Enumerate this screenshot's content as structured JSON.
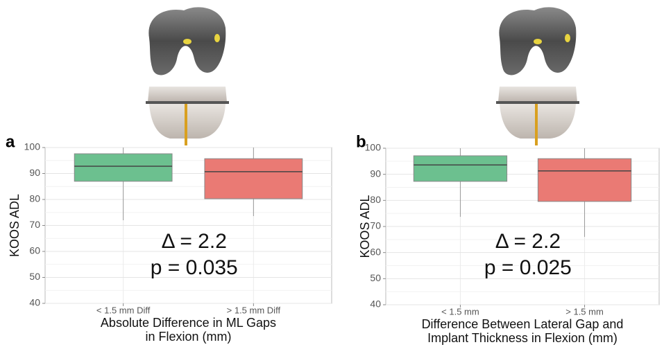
{
  "chart_data": [
    {
      "type": "box",
      "panel_label": "a",
      "ylabel": "KOOS ADL",
      "xlabel": [
        "Absolute Difference in ML Gaps",
        "in Flexion (mm)"
      ],
      "categories": [
        "< 1.5 mm Diff",
        "> 1.5 mm Diff"
      ],
      "colors": [
        "#6cc08f",
        "#ea7a74"
      ],
      "boxes": [
        {
          "whislo": 72,
          "q1": 87,
          "med": 92.8,
          "q3": 97.6,
          "whishi": 100
        },
        {
          "whislo": 73.6,
          "q1": 80.3,
          "med": 90.7,
          "q3": 95.7,
          "whishi": 100
        }
      ],
      "annotations": [
        "Δ = 2.2",
        "p = 0.035"
      ],
      "ylim": [
        40,
        100
      ],
      "yticks": [
        40,
        50,
        60,
        70,
        80,
        90,
        100
      ],
      "minor_yticks": [
        45,
        55,
        65,
        75,
        85,
        95
      ],
      "grid": true
    },
    {
      "type": "box",
      "panel_label": "b",
      "ylabel": "KOOS ADL",
      "xlabel": [
        "Difference Between Lateral Gap and",
        "Implant Thickness in Flexion (mm)"
      ],
      "categories": [
        "< 1.5 mm",
        "> 1.5 mm"
      ],
      "colors": [
        "#6cc08f",
        "#ea7a74"
      ],
      "boxes": [
        {
          "whislo": 73.7,
          "q1": 87.3,
          "med": 93.6,
          "q3": 97.1,
          "whishi": 100
        },
        {
          "whislo": 66,
          "q1": 79.6,
          "med": 91.3,
          "q3": 96,
          "whishi": 100
        }
      ],
      "annotations": [
        "Δ = 2.2",
        "p = 0.025"
      ],
      "ylim": [
        40,
        100
      ],
      "yticks": [
        40,
        50,
        60,
        70,
        80,
        90,
        100
      ],
      "minor_yticks": [
        45,
        55,
        65,
        75,
        85,
        95
      ],
      "grid": true
    }
  ]
}
